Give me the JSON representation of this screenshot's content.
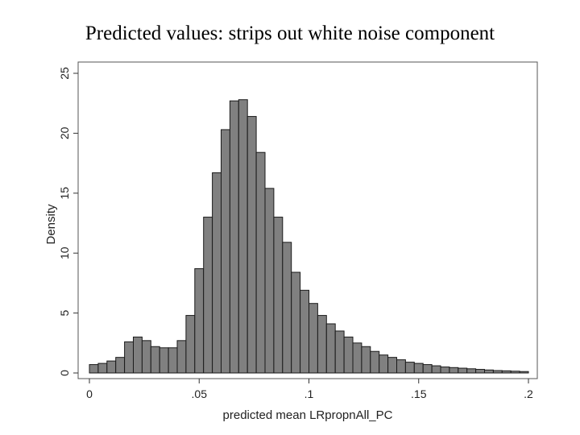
{
  "chart_data": {
    "type": "bar",
    "title": "Predicted values: strips out white noise component",
    "xlabel": "predicted mean LRpropnAll_PC",
    "ylabel": "Density",
    "xlim": [
      0,
      0.2
    ],
    "ylim": [
      0,
      25
    ],
    "x_ticks": [
      {
        "value": 0,
        "label": "0"
      },
      {
        "value": 0.05,
        "label": ".05"
      },
      {
        "value": 0.1,
        "label": ".1"
      },
      {
        "value": 0.15,
        "label": ".15"
      },
      {
        "value": 0.2,
        "label": ".2"
      }
    ],
    "y_ticks": [
      {
        "value": 0,
        "label": "0"
      },
      {
        "value": 5,
        "label": "5"
      },
      {
        "value": 10,
        "label": "10"
      },
      {
        "value": 15,
        "label": "15"
      },
      {
        "value": 20,
        "label": "20"
      },
      {
        "value": 25,
        "label": "25"
      }
    ],
    "bin_start": 0,
    "bin_width": 0.004,
    "values": [
      0.7,
      0.8,
      1.0,
      1.3,
      2.6,
      3.0,
      2.7,
      2.2,
      2.1,
      2.1,
      2.7,
      4.8,
      8.7,
      13.0,
      16.7,
      20.3,
      22.7,
      22.8,
      21.4,
      18.4,
      15.4,
      13.0,
      10.9,
      8.4,
      6.9,
      5.8,
      4.8,
      4.1,
      3.5,
      3.0,
      2.5,
      2.2,
      1.8,
      1.5,
      1.3,
      1.1,
      0.9,
      0.8,
      0.7,
      0.6,
      0.5,
      0.45,
      0.4,
      0.35,
      0.3,
      0.25,
      0.2,
      0.18,
      0.15,
      0.12
    ],
    "grid": false,
    "legend": "none"
  }
}
